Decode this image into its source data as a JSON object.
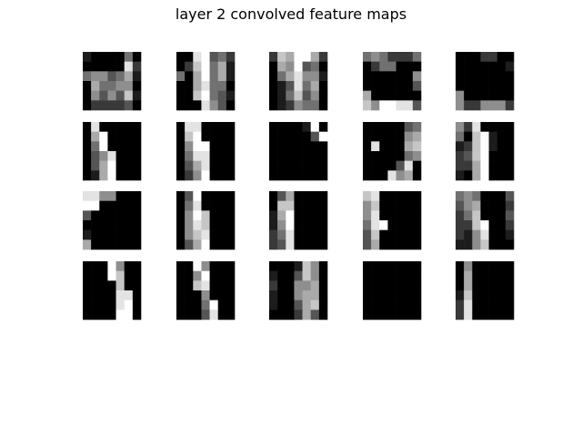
{
  "title": "layer 2 convolved feature maps",
  "chart_data": {
    "type": "heatmap",
    "title": "layer 2 convolved feature maps",
    "colormap": "gray",
    "value_range": [
      0,
      9
    ],
    "grid_rows": 4,
    "grid_cols": 5,
    "maps": [
      [
        "1000040",
        "0000082",
        "4553461",
        "0644550",
        "0535371",
        "0222230"
      ],
      [
        "0089342",
        "0279461",
        "4069461",
        "0068440",
        "0079431",
        "0008530"
      ],
      [
        "2769962",
        "0659340",
        "0468551",
        "0138460",
        "0147350",
        "0125440"
      ],
      [
        "4542224",
        "0244000",
        "0000005",
        "0000003",
        "6000000",
        "7599883"
      ],
      [
        "0002200",
        "0000001",
        "0000000",
        "0000000",
        "5000000",
        "5225552"
      ],
      [
        "0800000",
        "0690000",
        "0490000",
        "0358000",
        "0369000",
        "0169000"
      ],
      [
        "0880000",
        "0790000",
        "0599000",
        "0488000",
        "0368000",
        "0259000"
      ],
      [
        "0000190",
        "0000039",
        "0000000",
        "0000000",
        "0000000",
        "0000000"
      ],
      [
        "0000034",
        "0000056",
        "0800067",
        "0000045",
        "0000380",
        "0008560"
      ],
      [
        "5280000",
        "4079100",
        "1279100",
        "2379000",
        "2269000",
        "1069000"
      ],
      [
        "8855000",
        "9900000",
        "3000000",
        "0000000",
        "1000000",
        "6000000"
      ],
      [
        "0390000",
        "0480000",
        "0597000",
        "0587000",
        "0578000",
        "0369000"
      ],
      [
        "0360000",
        "0770000",
        "1690000",
        "1590000",
        "2480000",
        "2380000"
      ],
      [
        "7800000",
        "5700000",
        "5800000",
        "4890000",
        "3700000",
        "3600000"
      ],
      [
        "4540003",
        "3560002",
        "2470003",
        "2279002",
        "2158001",
        "1157000"
      ],
      [
        "0009500",
        "0009700",
        "0000700",
        "0000880",
        "0000890",
        "0000990"
      ],
      [
        "0095000",
        "0059000",
        "0078000",
        "0005000",
        "0004900",
        "0003800"
      ],
      [
        "0001750",
        "1003750",
        "2005560",
        "1005660",
        "1003670",
        "0002630"
      ],
      [
        "0000000",
        "0000000",
        "0000000",
        "0000000",
        "0000000",
        "0000000"
      ],
      [
        "0500000",
        "0600000",
        "0600000",
        "1700000",
        "2800000",
        "2800000"
      ]
    ]
  }
}
